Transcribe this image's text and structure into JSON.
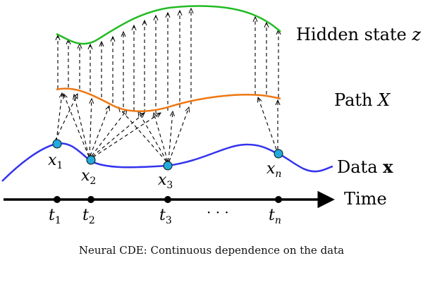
{
  "labels": {
    "hidden_state": "Hidden state",
    "hidden_state_var": "z",
    "path": "Path",
    "path_var": "X",
    "data": "Data",
    "data_var": "x",
    "time": "Time"
  },
  "data_points": [
    {
      "label": "x",
      "sub": "1"
    },
    {
      "label": "x",
      "sub": "2"
    },
    {
      "label": "x",
      "sub": "3"
    },
    {
      "label": "x",
      "sub": "n"
    }
  ],
  "time_ticks": [
    {
      "label": "t",
      "sub": "1"
    },
    {
      "label": "t",
      "sub": "2"
    },
    {
      "label": "t",
      "sub": "3"
    },
    {
      "label": "t",
      "sub": "n"
    }
  ],
  "ellipsis": "· · ·",
  "caption": "Neural CDE: Continuous dependence on the data",
  "colors": {
    "hidden_state": "#22bb22",
    "path": "#ee7711",
    "data": "#3333ee",
    "data_point": "#22aadd",
    "axis": "#000000"
  }
}
